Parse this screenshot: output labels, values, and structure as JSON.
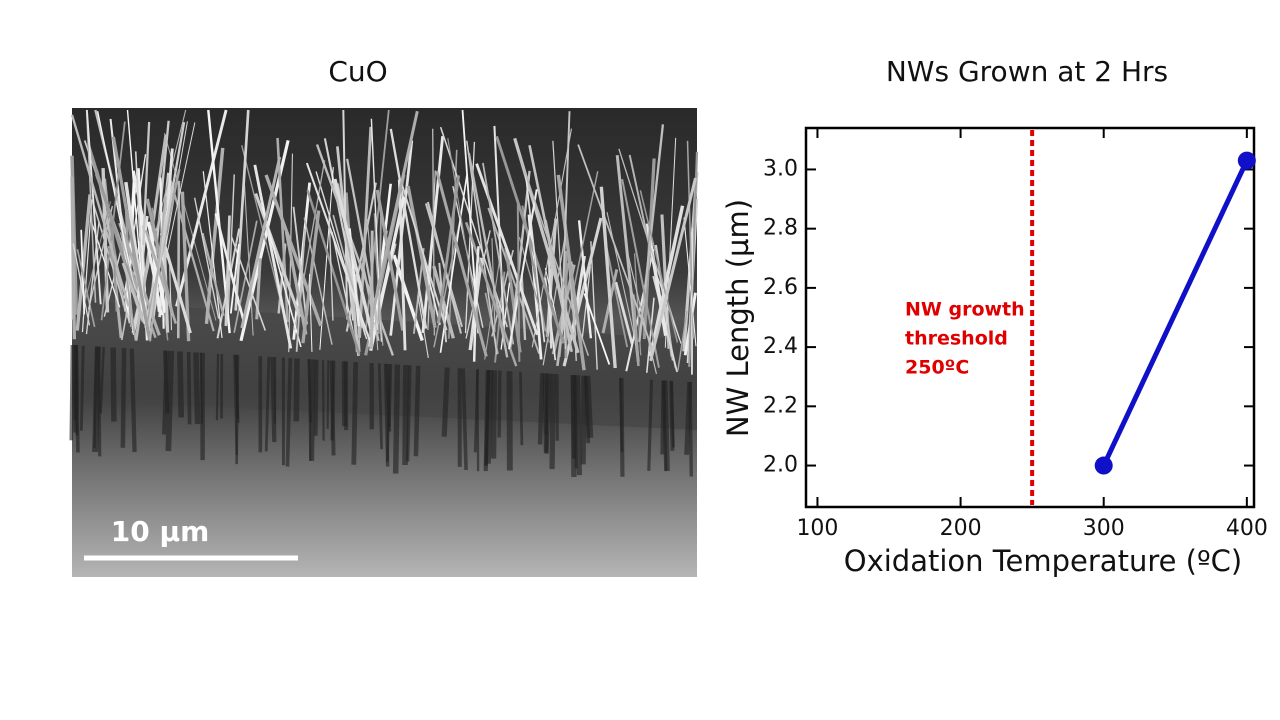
{
  "image_panel": {
    "title": "CuO",
    "scale_bar": "10 µm"
  },
  "chart_data": {
    "type": "line",
    "title": "NWs Grown at 2 Hrs",
    "x_label": "Oxidation Temperature (ºC)",
    "y_label": "NW Length (µm)",
    "x": [
      300,
      400
    ],
    "series": [
      {
        "name": "NW length",
        "color": "#1010c8",
        "values": [
          2.0,
          3.03
        ]
      }
    ],
    "xlim": [
      92,
      405
    ],
    "ylim": [
      1.86,
      3.14
    ],
    "xticks": [
      100,
      200,
      300,
      400
    ],
    "yticks": [
      {
        "value": 2,
        "label": "2.0"
      },
      2.2,
      2.4,
      2.6,
      2.8,
      {
        "value": 3,
        "label": "3.0"
      }
    ],
    "threshold": {
      "value": 250,
      "color": "#e00000",
      "lines": [
        "NW growth",
        "threshold",
        "250ºC"
      ]
    }
  }
}
